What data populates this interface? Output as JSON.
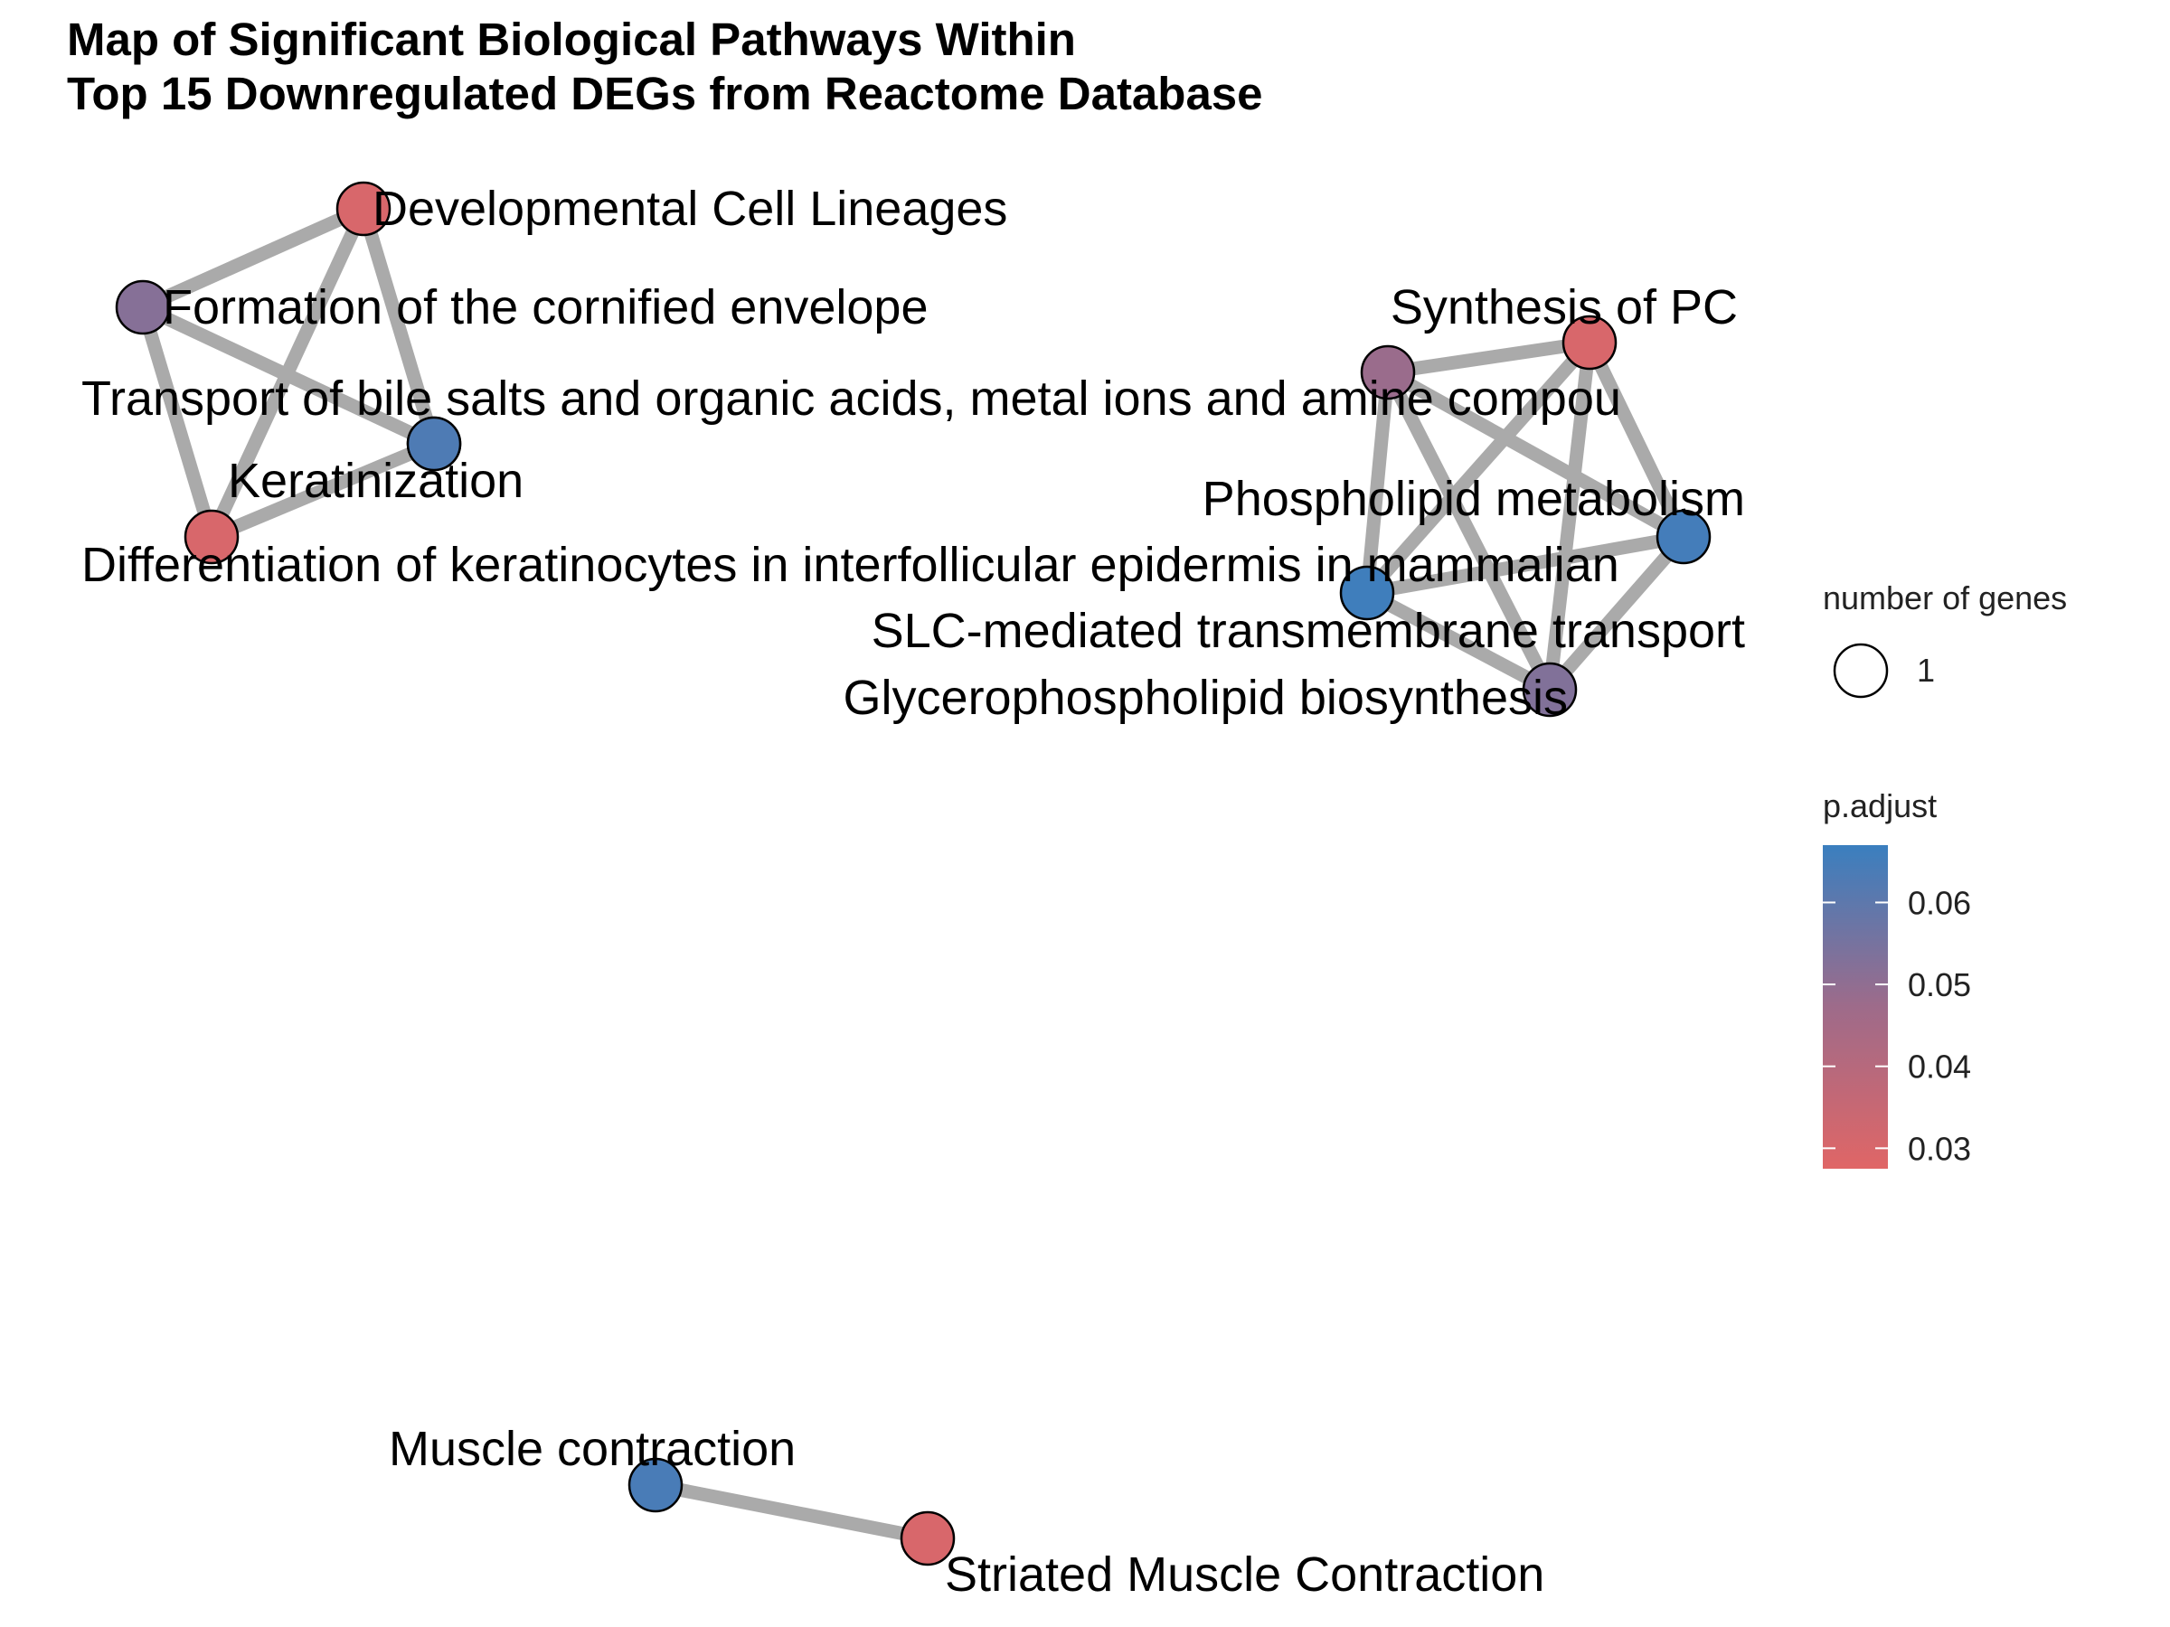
{
  "title": {
    "line1": "Map of Significant Biological Pathways Within",
    "line2": "Top 15 Downregulated DEGs from Reactome Database"
  },
  "colors": {
    "edge": "#aaaaaa",
    "low": "#e06666",
    "mid": "#9e6b8a",
    "high": "#3a7fbf",
    "node_stroke": "#000000"
  },
  "nodes": [
    {
      "id": "dev",
      "label": "Developmental Cell Lineages",
      "p_adjust": 0.03
    },
    {
      "id": "corn",
      "label": "Formation of the cornified envelope",
      "p_adjust": 0.052
    },
    {
      "id": "bile",
      "label": "Transport of bile salts and organic acids, metal ions and amine compou",
      "p_adjust": 0.063
    },
    {
      "id": "kera",
      "label": "Keratinization",
      "p_adjust": 0.063
    },
    {
      "id": "diff",
      "label": "Differentiation of keratinocytes in interfollicular epidermis in mammalian",
      "p_adjust": 0.03
    },
    {
      "id": "synpc",
      "label": "Synthesis of PC",
      "p_adjust": 0.03
    },
    {
      "id": "slc",
      "label": "SLC-mediated transmembrane transport",
      "p_adjust": 0.048
    },
    {
      "id": "phos",
      "label": "Phospholipid metabolism",
      "p_adjust": 0.065
    },
    {
      "id": "glyc",
      "label": "Glycerophospholipid biosynthesis",
      "p_adjust": 0.053
    },
    {
      "id": "x1",
      "label": "",
      "p_adjust": 0.066
    },
    {
      "id": "musc",
      "label": "Muscle contraction",
      "p_adjust": 0.064
    },
    {
      "id": "stri",
      "label": "Striated Muscle Contraction",
      "p_adjust": 0.03
    }
  ],
  "edges": [
    [
      "dev",
      "corn"
    ],
    [
      "dev",
      "diff"
    ],
    [
      "dev",
      "kera"
    ],
    [
      "corn",
      "diff"
    ],
    [
      "corn",
      "kera"
    ],
    [
      "diff",
      "kera"
    ],
    [
      "slc",
      "synpc"
    ],
    [
      "slc",
      "phos"
    ],
    [
      "slc",
      "glyc"
    ],
    [
      "slc",
      "x1"
    ],
    [
      "synpc",
      "phos"
    ],
    [
      "synpc",
      "glyc"
    ],
    [
      "synpc",
      "x1"
    ],
    [
      "phos",
      "glyc"
    ],
    [
      "phos",
      "x1"
    ],
    [
      "glyc",
      "x1"
    ],
    [
      "musc",
      "stri"
    ]
  ],
  "legend": {
    "size_title": "number of genes",
    "size_label": "1",
    "color_title": "p.adjust",
    "ticks": [
      "0.06",
      "0.05",
      "0.04",
      "0.03"
    ]
  }
}
